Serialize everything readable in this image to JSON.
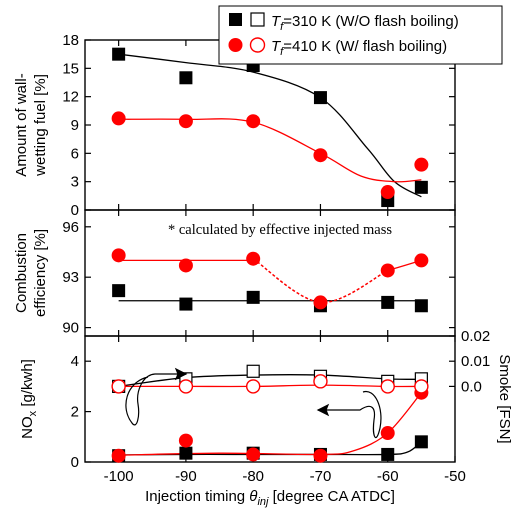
{
  "colors": {
    "black": "#000000",
    "red": "#ff0000",
    "white": "#ffffff"
  },
  "legend": {
    "entries": [
      {
        "tf_label": "T",
        "tf_sub": "f",
        "text": "=310 K (W/O flash boiling)",
        "color": "#000000"
      },
      {
        "tf_label": "T",
        "tf_sub": "f",
        "text": "=410 K (W/ flash boiling)",
        "color": "#ff0000"
      }
    ]
  },
  "x_axis": {
    "label_main": "Injection timing ",
    "label_theta": "θ",
    "label_sub": "inj",
    "label_rest": " [degree CA ATDC]",
    "ticks": [
      "-100",
      "-90",
      "-80",
      "-70",
      "-60",
      "-50"
    ]
  },
  "chart_data": [
    {
      "type": "scatter",
      "panel": "top",
      "ylabel_line1": "Amount of wall-",
      "ylabel_line2": "wetting fuel [%]",
      "xlim": [
        -105,
        -50
      ],
      "ylim": [
        0,
        18
      ],
      "yticks": [
        "0",
        "3",
        "6",
        "9",
        "12",
        "15",
        "18"
      ],
      "x": [
        -100,
        -90,
        -80,
        -70,
        -60,
        -55
      ],
      "series": [
        {
          "name": "Tf=310 K (W/O flash boiling)",
          "marker": "square-filled",
          "color": "#000000",
          "values": [
            16.5,
            14.0,
            15.3,
            11.9,
            1.0,
            2.4
          ]
        },
        {
          "name": "Tf=410 K (W/ flash boiling)",
          "marker": "circle-filled",
          "color": "#ff0000",
          "values": [
            9.7,
            9.4,
            9.4,
            5.8,
            1.9,
            4.8
          ]
        }
      ]
    },
    {
      "type": "scatter",
      "panel": "middle",
      "ylabel_line1": "Combustion",
      "ylabel_line2": "efficiency [%]",
      "annotation": "* calculated by effective injected mass",
      "xlim": [
        -105,
        -50
      ],
      "ylim": [
        89.5,
        97
      ],
      "yticks": [
        "90",
        "93",
        "96"
      ],
      "x": [
        -100,
        -90,
        -80,
        -70,
        -60,
        -55
      ],
      "series": [
        {
          "name": "Tf=310 K (W/O flash boiling)",
          "marker": "square-filled",
          "color": "#000000",
          "values": [
            92.2,
            91.4,
            91.8,
            91.3,
            91.5,
            91.3
          ]
        },
        {
          "name": "Tf=410 K (W/ flash boiling)",
          "marker": "circle-filled",
          "color": "#ff0000",
          "values": [
            94.3,
            93.7,
            94.1,
            91.5,
            93.4,
            94.0
          ]
        }
      ]
    },
    {
      "type": "scatter",
      "panel": "bottom",
      "ylabel_left_main": "NO",
      "ylabel_left_sub": "x",
      "ylabel_left_rest": " [g/kwh]",
      "ylabel_right": "Smoke [FSN]",
      "xlim": [
        -105,
        -50
      ],
      "ylim_left": [
        0,
        5
      ],
      "yticks_left": [
        "0",
        "2",
        "4"
      ],
      "ylim_right": [
        -0.03,
        0.02
      ],
      "yticks_right": [
        "0.0",
        "0.01",
        "0.02"
      ],
      "x": [
        -100,
        -90,
        -80,
        -70,
        -60,
        -55
      ],
      "series": [
        {
          "name": "NOx, Tf=310 K",
          "axis": "left",
          "marker": "square-filled",
          "color": "#000000",
          "values": [
            0.25,
            0.35,
            0.35,
            0.3,
            0.3,
            0.8
          ]
        },
        {
          "name": "NOx, Tf=410 K",
          "axis": "left",
          "marker": "circle-filled",
          "color": "#ff0000",
          "values": [
            0.25,
            0.85,
            0.3,
            0.25,
            1.15,
            2.75
          ]
        },
        {
          "name": "Smoke, Tf=310 K",
          "axis": "right",
          "marker": "square-open",
          "color": "#000000",
          "values": [
            0.0,
            0.003,
            0.006,
            0.004,
            0.002,
            0.003
          ]
        },
        {
          "name": "Smoke, Tf=410 K",
          "axis": "right",
          "marker": "circle-open",
          "color": "#ff0000",
          "values": [
            0.0,
            0.0,
            0.0,
            0.002,
            0.0,
            0.0
          ]
        }
      ]
    }
  ]
}
